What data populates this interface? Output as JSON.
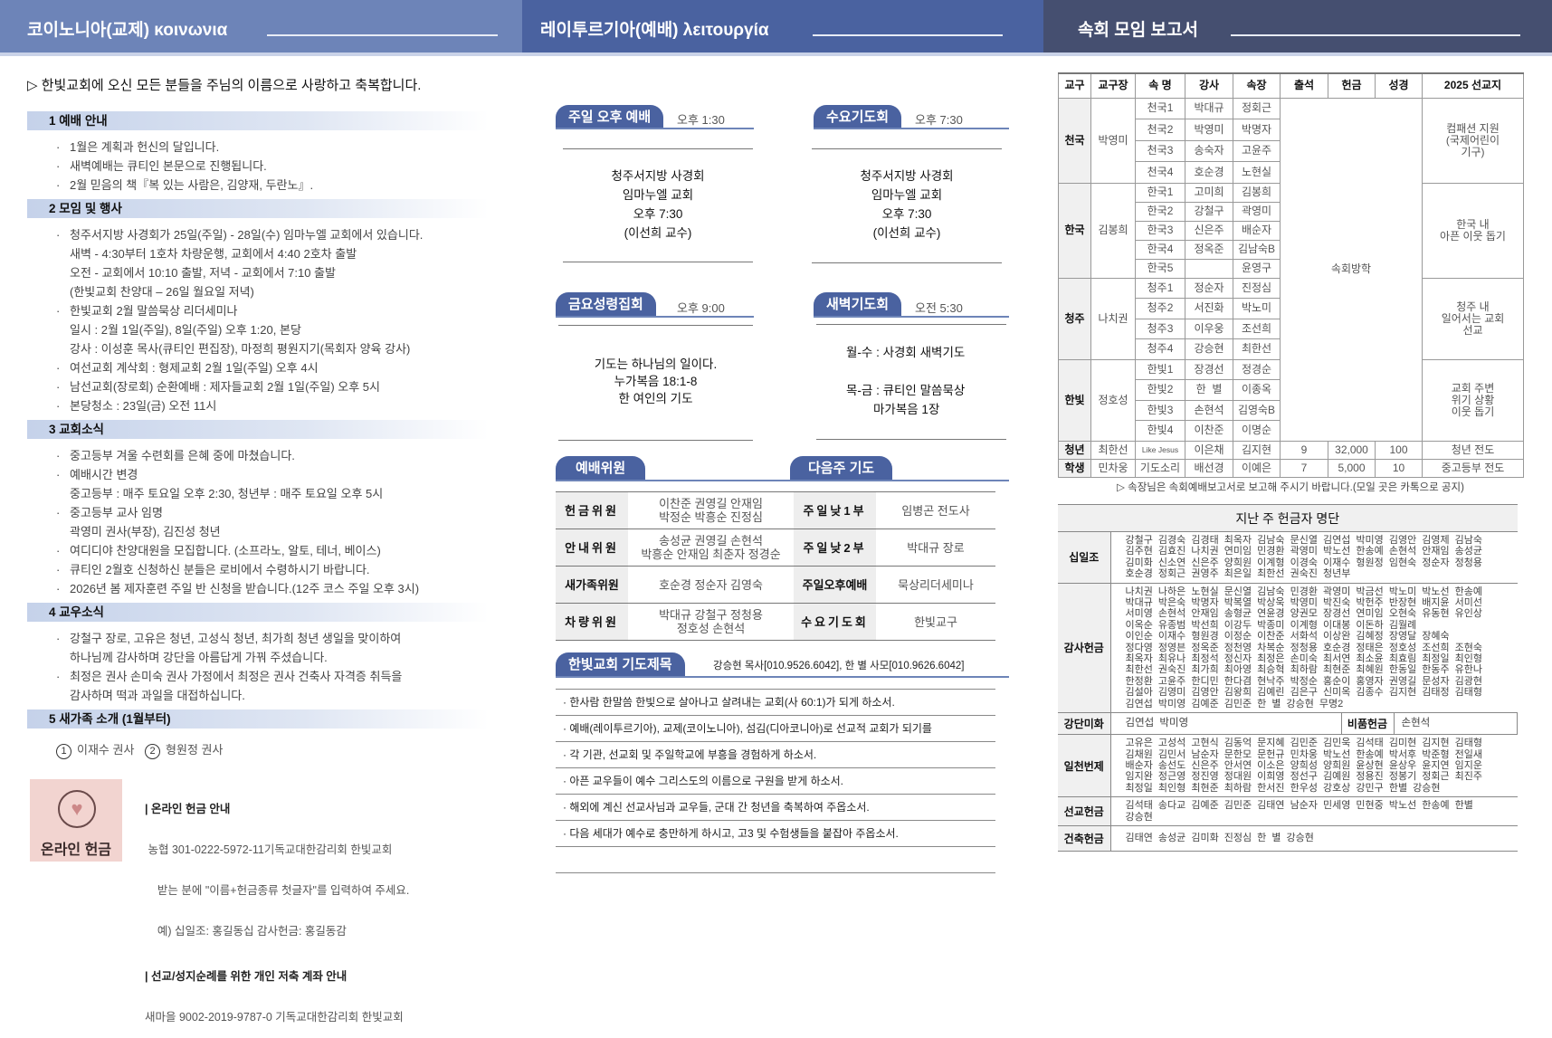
{
  "header": {
    "left_title": "코이노니아(교제) κοινωνια",
    "middle_title": "레이투르기아(예배) λειτουργία",
    "right_title": "속회 모임 보고서",
    "colors": {
      "left": "#6d84b8",
      "middle": "#4a62a0",
      "right": "#454f70"
    }
  },
  "left": {
    "welcome": "▷ 한빛교회에 오신 모든 분들을 주님의 이름으로 사랑하고 축복합니다.",
    "sections": [
      {
        "title": "1 예배 안내",
        "items": [
          "1월은 계획과 헌신의 달입니다.",
          "새벽예배는 큐티인 본문으로 진행됩니다.",
          "2월 믿음의 책『복 있는 사람은, 김양재, 두란노』."
        ]
      },
      {
        "title": "2 모임 및 행사",
        "items": [
          "청주서지방 사경회가 25일(주일) - 28일(수) 임마누엘 교회에서 있습니다.\n새벽 - 4:30부터 1호차 차량운행, 교회에서 4:40 2호차 출발\n오전 - 교회에서 10:10 출발, 저녁 - 교회에서 7:10 출발\n(한빛교회 찬양대 – 26일 월요일 저녁)",
          "한빛교회 2월 말씀묵상 리더세미나\n일시 : 2월 1일(주일), 8일(주일) 오후 1:20, 본당\n강사 : 이성훈 목사(큐티인 편집장), 마정희 평원지기(목회자 양육 강사)",
          "여선교회 계삭회 : 형제교회 2월 1일(주일) 오후 4시",
          "남선교회(장로회) 순환예배 : 제자들교회 2월 1일(주일) 오후 5시",
          "본당청소 : 23일(금) 오전 11시"
        ]
      },
      {
        "title": "3 교회소식",
        "items": [
          "중고등부 겨울 수련회를 은혜 중에 마쳤습니다.",
          "예배시간 변경\n중고등부 : 매주 토요일 오후 2:30,    청년부 : 매주 토요일 오후 5시",
          "중고등부 교사 임명\n곽영미 권사(부장), 김진성 청년",
          "여디디야 찬양대원을 모집합니다. (소프라노, 알토, 테너, 베이스)",
          "큐티인 2월호 신청하신 분들은 로비에서 수령하시기 바랍니다.",
          "2026년 봄 제자훈련 주일 반 신청을 받습니다.(12주 코스 주일 오후 3시)"
        ]
      },
      {
        "title": "4 교우소식",
        "items": [
          "강철구 장로, 고유은 청년, 고성식 청년, 최가희 청년 생일을 맞이하여\n하나님께 감사하며 강단을 아름답게 가꿔 주셨습니다.",
          "최정은 권사 손미숙 권사 가정에서 최정은 권사 건축사 자격증 취득을\n감사하며 떡과 과일을 대접하십니다."
        ]
      },
      {
        "title": "5 새가족 소개 (1월부터)",
        "items": []
      }
    ],
    "new_family": [
      {
        "num": "1",
        "name": "이재수 권사"
      },
      {
        "num": "2",
        "name": "형원정 권사"
      }
    ],
    "online": {
      "badge_label": "온라인 헌금",
      "icon": "heart-circle-icon",
      "heading1": "| 온라인 헌금 안내",
      "account1": " 농협 301-0222-5972-11기독교대한감리회 한빛교회",
      "instruction": "    받는 분에 \"이름+헌금종류 첫글자\"를 입력하여 주세요.",
      "example": "    예) 십일조: 홍길동십 감사헌금: 홍길동감",
      "heading2": "| 선교/성지순례를 위한 개인 저축 계좌 안내",
      "account2": "새마을 9002-2019-9787-0 기독교대한감리회 한빛교회"
    }
  },
  "middle": {
    "services": [
      {
        "name": "주일 오후 예배",
        "time": "오후 1:30",
        "content": "청주서지방 사경회\n임마누엘 교회\n오후 7:30\n(이선희 교수)"
      },
      {
        "name": "수요기도회",
        "time": "오후 7:30",
        "content": "청주서지방 사경회\n임마누엘 교회\n오후 7:30\n(이선희 교수)"
      },
      {
        "name": "금요성령집회",
        "time": "오후 9:00",
        "content": "기도는 하나님의 일이다.\n누가복음 18:1-8\n한 여인의 기도"
      },
      {
        "name": "새벽기도회",
        "time": "오전 5:30",
        "content": "월-수 : 사경회 새벽기도\n\n목-금 : 큐티인 말씀묵상\n        마가복음 1장"
      }
    ],
    "committee_tab": "예배위원",
    "next_prayer_tab": "다음주 기도",
    "committee": [
      {
        "role": "헌금위원",
        "names": "이찬준 권영길 안재임\n박정순 박흥순 진정심",
        "slot": "주일낮1부",
        "leader": "임병곤 전도사"
      },
      {
        "role": "안내위원",
        "names": "송성균 권영길 손현석\n박흥순 안재임 최춘자 정경순",
        "slot": "주일낮2부",
        "leader": "박대규 장로"
      },
      {
        "role": "새가족위원",
        "names": "호순경 정순자 김영숙",
        "slot": "주일오후예배",
        "leader": "묵상리더세미나"
      },
      {
        "role": "차량위원",
        "names": "박대규 강철구 정청용\n정호성 손현석",
        "slot": "수요기도회",
        "leader": "한빛교구"
      }
    ],
    "prayer_tab": "한빛교회 기도제목",
    "contact": "강승현 목사[010.9526.6042], 한 별 사모[010.9626.6042]",
    "prayers": [
      "한사람 한말씀 한빛으로 살아나고 살려내는 교회(사 60:1)가 되게 하소서.",
      "예배(레이투르기아), 교제(코이노니아), 섬김(디아코니아)로 선교적 교회가 되기를",
      "각 기관, 선교회 및 주일학교에 부흥을 경험하게 하소서.",
      "아픈 교우들이 예수 그리스도의 이름으로 구원을 받게 하소서.",
      "해외에 계신 선교사님과 교우들, 군대 간 청년을 축복하여 주옵소서.",
      "다음 세대가 예수로 충만하게 하시고, 고3 및 수험생들을 붙잡아 주옵소서."
    ]
  },
  "report": {
    "columns": [
      "교구",
      "교구장",
      "속 명",
      "강사",
      "속장",
      "출석",
      "헌금",
      "성경",
      "2025 선교지"
    ],
    "merged_status": "속회방학",
    "districts": [
      {
        "name": "천국",
        "leader": "박영미",
        "mission": "컴패션 지원\n(국제어린이\n기구)",
        "cells": [
          [
            "천국1",
            "박대규",
            "정회근"
          ],
          [
            "천국2",
            "박영미",
            "박명자"
          ],
          [
            "천국3",
            "송숙자",
            "고윤주"
          ],
          [
            "천국4",
            "호순경",
            "노현실"
          ]
        ]
      },
      {
        "name": "한국",
        "leader": "김봉희",
        "mission": "한국 내\n아픈 이웃 돕기",
        "cells": [
          [
            "한국1",
            "고미희",
            "김봉희"
          ],
          [
            "한국2",
            "강철구",
            "곽영미"
          ],
          [
            "한국3",
            "신은주",
            "배순자"
          ],
          [
            "한국4",
            "정옥준",
            "김남숙B"
          ],
          [
            "한국5",
            "",
            "윤영구"
          ]
        ]
      },
      {
        "name": "청주",
        "leader": "나치권",
        "mission": "청주 내\n일어서는 교회\n선교",
        "cells": [
          [
            "청주1",
            "정순자",
            "진정심"
          ],
          [
            "청주2",
            "서진화",
            "박노미"
          ],
          [
            "청주3",
            "이우웅",
            "조선희"
          ],
          [
            "청주4",
            "강승현",
            "최한선"
          ]
        ]
      },
      {
        "name": "한빛",
        "leader": "정호성",
        "mission": "교회 주변\n위기 상황\n이웃 돕기",
        "cells": [
          [
            "한빛1",
            "장경선",
            "정경순"
          ],
          [
            "한빛2",
            "한  별",
            "이종옥"
          ],
          [
            "한빛3",
            "손현석",
            "김영숙B"
          ],
          [
            "한빛4",
            "이찬준",
            "이명순"
          ]
        ]
      }
    ],
    "youth": {
      "name": "청년",
      "leader": "최한선",
      "group": "Like Jesus",
      "teacher": "이은채",
      "cell_leader": "김지현",
      "attendance": "9",
      "offering": "32,000",
      "bible": "100",
      "mission": "청년 전도"
    },
    "students": {
      "name": "학생",
      "leader": "민차웅",
      "group": "기도소리",
      "teacher": "배선경",
      "cell_leader": "이예은",
      "attendance": "7",
      "offering": "5,000",
      "bible": "10",
      "mission": "중고등부 전도"
    },
    "note": "▷ 속장님은 속회예배보고서로 보고해 주시기 바랍니다.(모일 곳은 카톡으로 공지)"
  },
  "offerings": {
    "title": "지난 주 헌금자 명단",
    "tithe_label": "십일조",
    "tithe": "강철구 김경숙 김경태 최옥자 김남숙 문신열 김연섭 박미영 김영안 김영제 김남숙\n김주현 김효진 나치권 연미임 민경환 곽영미 박노선 한송예 손현석 안재임 송성균\n김미화 신소연 신은주 양희원 이계형 이경숙 이재수 형원정 임현숙 정순자 정청용\n호순경 정회근 권영주 최은일 최한선 권숙진 청년부",
    "thanks_label": "감사헌금",
    "thanks": "나치권 나하은 노현실 문신열 김남숙 민경환 곽영미 박금선 박노미 박노선 한송예\n박대규 박은숙 박명자 박복열 박상욱 박영미 박진숙 박헌주 반장현 배지윤 서미선\n서미영 손현석 안재임 송형균 연윤경 양권모 장경선 연미임 오현숙 유동현 유인상\n이옥순 유종범 박선희 이강두 박종미 이계형 이대봉 이돈하 김월례\n이인순 이재수 형원경 이정순 이찬준 서화석 이상완 김혜정 장영달 장혜숙\n정다영 정영븐 정옥준 정천영 차복순 정청용 호순경 정태은 정호성 조선희 조현숙\n최옥자 최유나 최정석 정신자 최정은 손미숙 최서연 최소윤 최효림 최정일 최인형\n최한선 권숙진 최가희 최아영 최승혁 최하람 최현준 최혜원 한동일 한동주 유한나\n한정환 고윤주 한디민 한다겸 현낙주 박정순 홍순이 홍영자 권영길 문성자 김광현\n김설아 김영미 김영안 김왕희 김예린 김은구 신미옥 김종수 김지현 김태정 김태형\n김연섭 박미영 김예준 김민준 한 별 강승현 무명2",
    "altar_label": "강단미화",
    "altar": "김연섭 박미영",
    "goods_label": "비품헌금",
    "goods": "손현석",
    "thousand_label": "일천번제",
    "thousand": "고유은 고성석 고현식 김동억 문지혜 김민준 김민욱 김석태 김미현 김지현 김태형\n김채원 김민서 남순자 문한모 문헌규 민차웅 박노선 한송예 박서후 박준형 전일새\n배순자 송선도 신은주 안서연 이소은 양희성 양희원 윤상현 윤상우 윤지연 임지운\n임지완 정근영 정진영 정대원 이희영 정선구 김예원 정용진 정봉기 정회근 최진주\n최정일 최인형 최현준 최하람 한서진 한우성 강호상 강민구 한별 강승현",
    "mission_label": "선교헌금",
    "mission": "김석태 송다교 김예준 김민준 김태연 남순자 민세영 민현중 박노선 한송예 한별\n강승현",
    "building_label": "건축헌금",
    "building": "김태연 송성균 김미화 진정심 한 별 강승현"
  }
}
